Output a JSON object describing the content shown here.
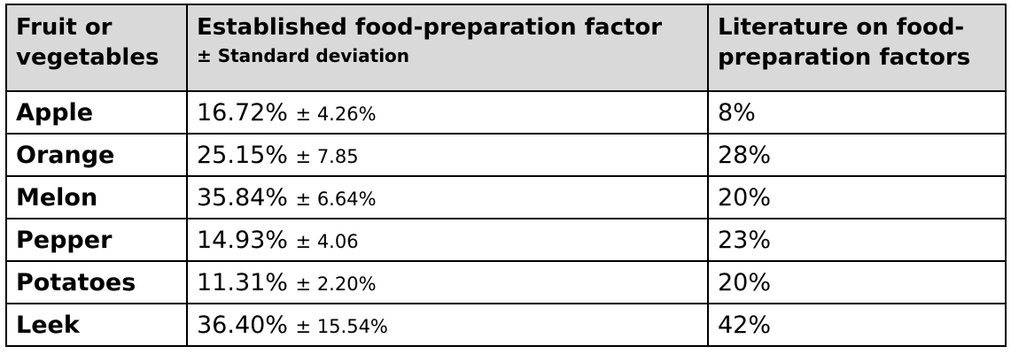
{
  "table": {
    "headers": {
      "col1": "Fruit or vegetables",
      "col2_main": "Established food-preparation factor",
      "col2_sub": "± Standard deviation",
      "col3": "Literature on food-preparation factors"
    },
    "rows": [
      {
        "name": "Apple",
        "factor": "16.72%",
        "sd": "± 4.26%",
        "literature": "8%"
      },
      {
        "name": "Orange",
        "factor": "25.15%",
        "sd": "± 7.85",
        "literature": "28%"
      },
      {
        "name": "Melon",
        "factor": "35.84%",
        "sd": "± 6.64%",
        "literature": "20%"
      },
      {
        "name": "Pepper",
        "factor": "14.93%",
        "sd": "± 4.06",
        "literature": "23%"
      },
      {
        "name": "Potatoes",
        "factor": "11.31%",
        "sd": "± 2.20%",
        "literature": "20%"
      },
      {
        "name": "Leek",
        "factor": "36.40%",
        "sd": "± 15.54%",
        "literature": "42%"
      }
    ]
  },
  "colors": {
    "header_bg": "#d9d9d9",
    "border": "#000000"
  }
}
